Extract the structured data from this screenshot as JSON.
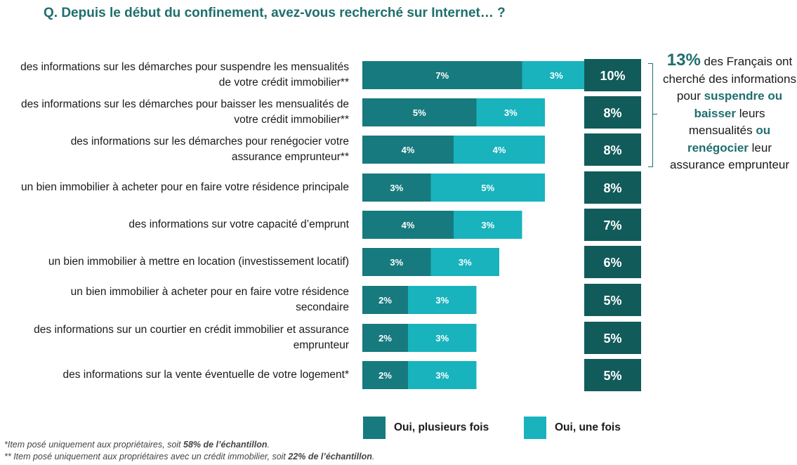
{
  "title": "Q. Depuis le début du confinement, avez-vous recherché sur Internet… ?",
  "colors": {
    "dark_teal": "#177a7e",
    "light_teal": "#18b3bd",
    "total_box": "#125b5b",
    "accent_text": "#1f6e6e"
  },
  "chart_data": {
    "type": "bar",
    "orientation": "horizontal",
    "stacked": true,
    "categories": [
      "des informations sur les démarches pour suspendre les mensualités de votre crédit immobilier**",
      "des informations sur les démarches pour baisser les mensualités de votre crédit immobilier**",
      "des informations sur les démarches pour renégocier votre assurance emprunteur**",
      "un bien immobilier à acheter pour en faire votre résidence principale",
      "des informations sur votre capacité d’emprunt",
      "un bien immobilier à mettre en location (investissement locatif)",
      "un bien immobilier à acheter pour en faire votre résidence secondaire",
      "des informations sur un courtier en crédit immobilier et assurance emprunteur",
      "des informations sur la vente éventuelle de votre logement*"
    ],
    "series": [
      {
        "name": "Oui, plusieurs fois",
        "values": [
          7,
          5,
          4,
          3,
          4,
          3,
          2,
          2,
          2
        ],
        "labels": [
          "7%",
          "5%",
          "4%",
          "3%",
          "4%",
          "3%",
          "2%",
          "2%",
          "2%"
        ]
      },
      {
        "name": "Oui, une fois",
        "values": [
          3,
          3,
          4,
          5,
          3,
          3,
          3,
          3,
          3
        ],
        "labels": [
          "3%",
          "3%",
          "4%",
          "5%",
          "3%",
          "3%",
          "3%",
          "3%",
          "3%"
        ]
      }
    ],
    "totals": [
      10,
      8,
      8,
      8,
      7,
      6,
      5,
      5,
      5
    ],
    "total_labels": [
      "10%",
      "8%",
      "8%",
      "8%",
      "7%",
      "6%",
      "5%",
      "5%",
      "5%"
    ],
    "legend_position": "bottom",
    "grid": false
  },
  "callout": {
    "pct": "13%",
    "t1": " des Français ont cherché des informations pour ",
    "h1": "suspendre ou baisser",
    "t2": " leurs mensualités ",
    "h2": "ou renégocier",
    "t3": " leur assurance emprunteur"
  },
  "footnotes": {
    "f1_pre": "*Item posé uniquement aux propriétaires, soit ",
    "f1_bold": "58% de l’échantillon",
    "f1_post": ".",
    "f2_pre": "** Item posé uniquement aux propriétaires avec un crédit immobilier, soit ",
    "f2_bold": "22% de l’échantillon",
    "f2_post": "."
  }
}
